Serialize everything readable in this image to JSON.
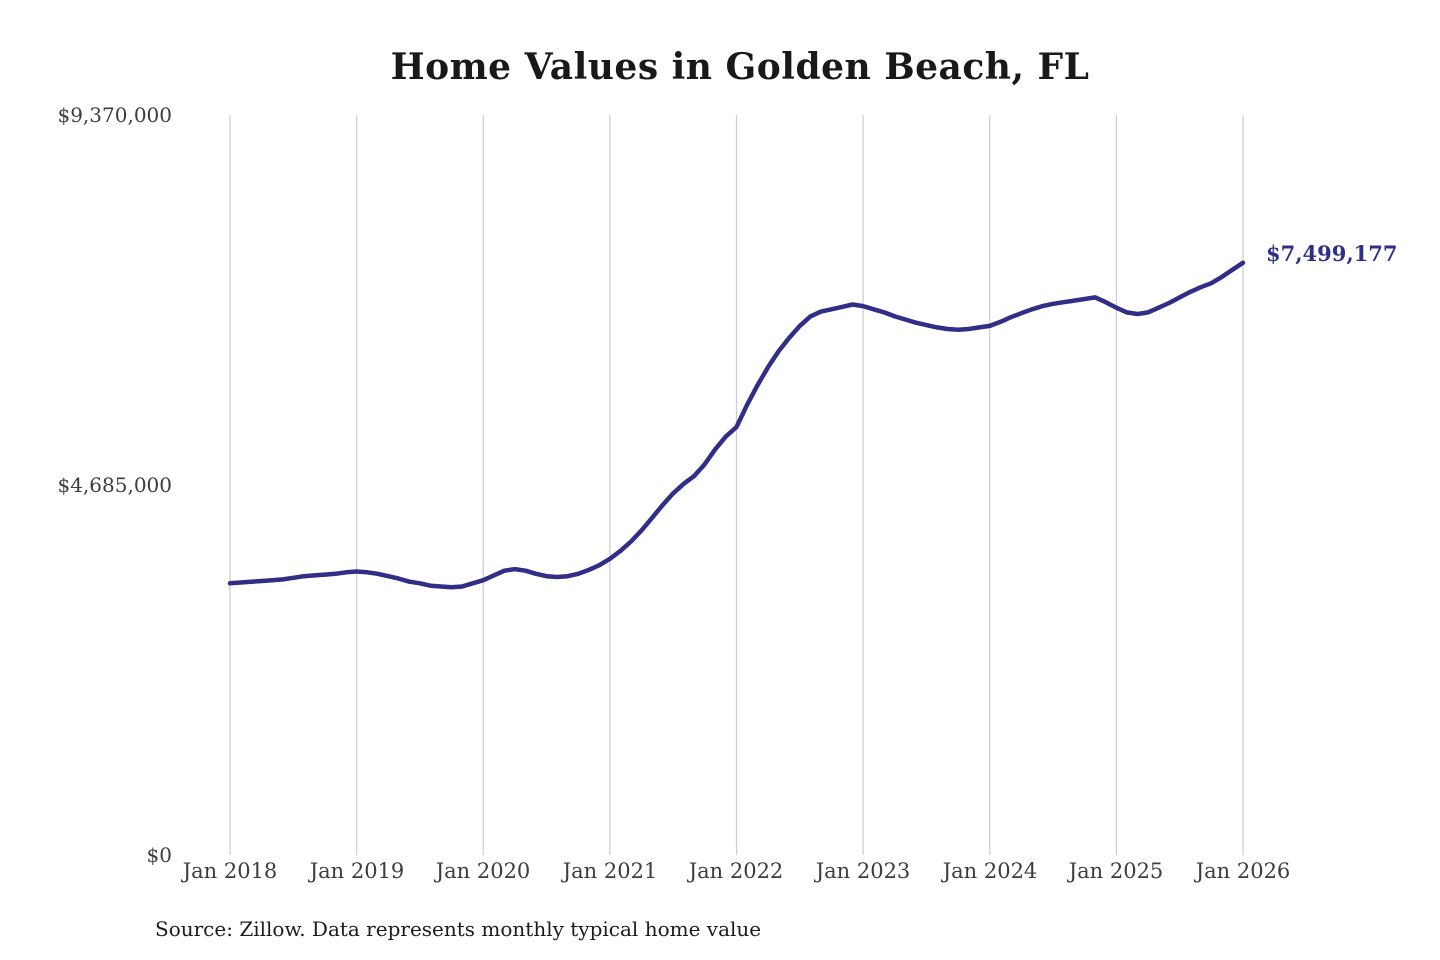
{
  "title": "Home Values in Golden Beach, FL",
  "end_value_label": "$7,499,177",
  "source_note": "Source: Zillow. Data represents monthly typical home value",
  "colors": {
    "line": "#302e87",
    "end_label": "#2e3087",
    "gridline": "#cccccc",
    "title_text": "#191919",
    "axis_text": "#3d3d3d"
  },
  "y_axis": {
    "ticks": [
      {
        "label": "$9,370,000",
        "value": 9370000
      },
      {
        "label": "$4,685,000",
        "value": 4685000
      },
      {
        "label": "$0",
        "value": 0
      }
    ]
  },
  "x_axis": {
    "ticks": [
      "Jan 2018",
      "Jan 2019",
      "Jan 2020",
      "Jan 2021",
      "Jan 2022",
      "Jan 2023",
      "Jan 2024",
      "Jan 2025",
      "Jan 2026"
    ]
  },
  "chart_data": {
    "type": "line",
    "title": "Home Values in Golden Beach, FL",
    "series_name": "Monthly typical home value ($)",
    "x_start": "2018-01",
    "x_end": "2026-01",
    "interval": "monthly",
    "ylim": [
      0,
      9370000
    ],
    "grid": "vertical-only",
    "legend": "none",
    "final_value": 7499177,
    "values": [
      3440000,
      3450000,
      3460000,
      3470000,
      3480000,
      3490000,
      3510000,
      3530000,
      3540000,
      3550000,
      3560000,
      3580000,
      3590000,
      3580000,
      3560000,
      3530000,
      3500000,
      3460000,
      3440000,
      3410000,
      3400000,
      3390000,
      3400000,
      3440000,
      3480000,
      3540000,
      3600000,
      3620000,
      3600000,
      3560000,
      3530000,
      3520000,
      3530000,
      3560000,
      3610000,
      3670000,
      3750000,
      3850000,
      3970000,
      4110000,
      4270000,
      4430000,
      4580000,
      4700000,
      4800000,
      4950000,
      5140000,
      5300000,
      5420000,
      5700000,
      5950000,
      6180000,
      6380000,
      6550000,
      6700000,
      6820000,
      6880000,
      6910000,
      6940000,
      6970000,
      6950000,
      6910000,
      6870000,
      6820000,
      6780000,
      6740000,
      6710000,
      6680000,
      6660000,
      6650000,
      6660000,
      6680000,
      6700000,
      6750000,
      6810000,
      6860000,
      6910000,
      6950000,
      6980000,
      7000000,
      7020000,
      7040000,
      7060000,
      7000000,
      6930000,
      6870000,
      6850000,
      6870000,
      6930000,
      6990000,
      7060000,
      7130000,
      7190000,
      7240000,
      7320000,
      7410000,
      7499177
    ]
  }
}
